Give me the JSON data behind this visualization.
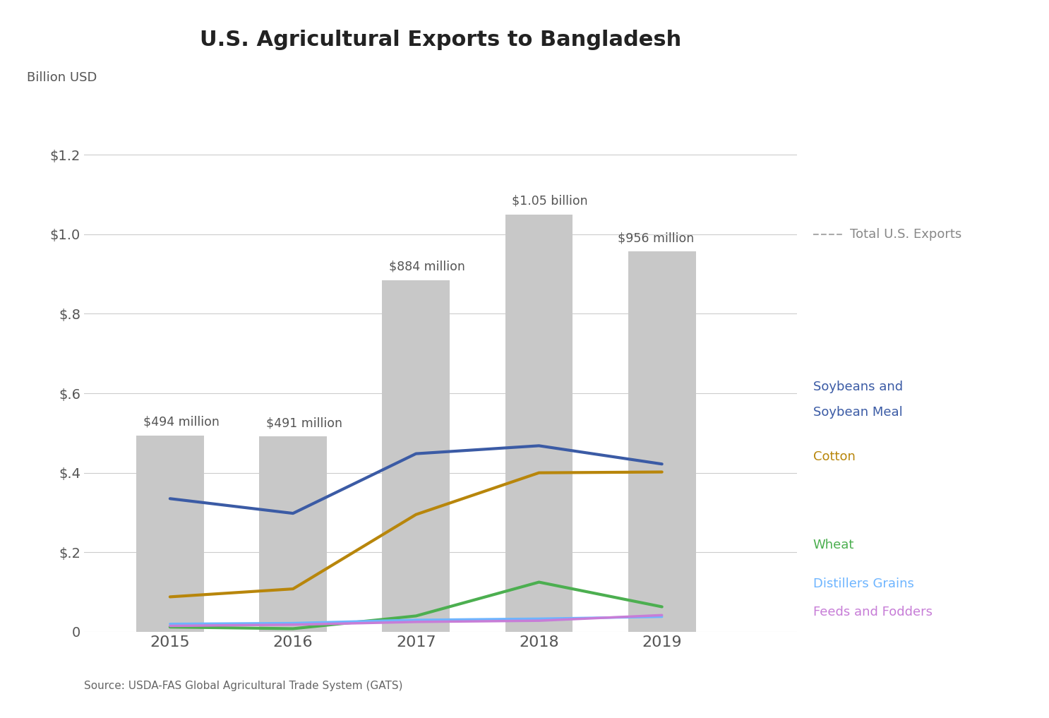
{
  "title": "U.S. Agricultural Exports to Bangladesh",
  "ylabel": "Billion USD",
  "source": "Source: USDA-FAS Global Agricultural Trade System (GATS)",
  "years": [
    2015,
    2016,
    2017,
    2018,
    2019
  ],
  "bar_values": [
    0.494,
    0.491,
    0.884,
    1.05,
    0.956
  ],
  "bar_labels": [
    "$494 million",
    "$491 million",
    "$884 million",
    "$1.05 billion",
    "$956 million"
  ],
  "bar_color": "#c8c8c8",
  "lines": {
    "Soybeans and\nSoybean Meal": {
      "values": [
        0.335,
        0.298,
        0.448,
        0.468,
        0.422
      ],
      "color": "#3B5BA5",
      "linewidth": 3
    },
    "Cotton": {
      "values": [
        0.088,
        0.108,
        0.295,
        0.4,
        0.402
      ],
      "color": "#B8860B",
      "linewidth": 3
    },
    "Wheat": {
      "values": [
        0.012,
        0.008,
        0.04,
        0.125,
        0.063
      ],
      "color": "#4CAF50",
      "linewidth": 3
    },
    "Distillers Grains": {
      "values": [
        0.02,
        0.022,
        0.03,
        0.033,
        0.038
      ],
      "color": "#6EB5FF",
      "linewidth": 2.5
    },
    "Feeds and Fodders": {
      "values": [
        0.015,
        0.018,
        0.025,
        0.028,
        0.042
      ],
      "color": "#C77DD7",
      "linewidth": 2.5
    }
  },
  "ylim": [
    0,
    1.3
  ],
  "yticks": [
    0,
    0.2,
    0.4,
    0.6,
    0.8,
    1.0,
    1.2
  ],
  "ytick_labels": [
    "0",
    "$.2",
    "$.4",
    "$.6",
    "$.8",
    "$1.0",
    "$1.2"
  ],
  "legend_total_label": "Total U.S. Exports",
  "background_color": "#ffffff",
  "bar_width": 0.55,
  "xlim_left": 2014.3,
  "xlim_right": 2020.1
}
